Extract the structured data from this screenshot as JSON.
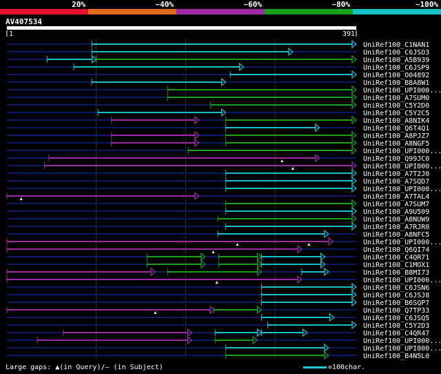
{
  "query": {
    "name": "AV407534",
    "start_label": "1",
    "end_label": "391",
    "length": 391
  },
  "identity_legend": [
    {
      "label": "20%",
      "color": "#e8102c"
    },
    {
      "label": "~40%",
      "color": "#e06a18"
    },
    {
      "label": "~60%",
      "color": "#9c2aa0"
    },
    {
      "label": "~80%",
      "color": "#18a018"
    },
    {
      "label": "~100%",
      "color": "#18c0c8"
    }
  ],
  "footer": {
    "gaps_text": "Large gaps: ▲(in Query)/– (in Subject)",
    "scale_text": "=100char."
  },
  "hits": [
    {
      "name": "UniRef100_C1NAN1",
      "segs": [
        [
          95,
          391,
          "c"
        ]
      ]
    },
    {
      "name": "UniRef100_C6JSO3",
      "segs": [
        [
          95,
          320,
          "c"
        ]
      ]
    },
    {
      "name": "UniRef100_A5B939",
      "segs": [
        [
          45,
          100,
          "c"
        ],
        [
          100,
          391,
          "g"
        ]
      ]
    },
    {
      "name": "UniRef100_C6JSP9",
      "segs": [
        [
          75,
          265,
          "c"
        ]
      ]
    },
    {
      "name": "UniRef100_O04892",
      "segs": [
        [
          250,
          391,
          "c"
        ]
      ]
    },
    {
      "name": "UniRef100_B8A8W1",
      "segs": [
        [
          95,
          245,
          "c"
        ]
      ]
    },
    {
      "name": "UniRef100_UPI000...",
      "segs": [
        [
          180,
          391,
          "g"
        ]
      ]
    },
    {
      "name": "UniRef100_A7SUM0",
      "segs": [
        [
          180,
          391,
          "g"
        ]
      ]
    },
    {
      "name": "UniRef100_C5Y2D0",
      "segs": [
        [
          228,
          391,
          "g"
        ]
      ]
    },
    {
      "name": "UniRef100_C5Y2C5",
      "segs": [
        [
          102,
          245,
          "c"
        ]
      ]
    },
    {
      "name": "UniRef100_A8NIK4",
      "segs": [
        [
          117,
          215,
          "m"
        ],
        [
          245,
          391,
          "g"
        ]
      ]
    },
    {
      "name": "UniRef100_Q6T4Q1",
      "segs": [
        [
          245,
          350,
          "c"
        ]
      ]
    },
    {
      "name": "UniRef100_A8PJZ7",
      "segs": [
        [
          117,
          215,
          "m"
        ],
        [
          245,
          391,
          "g"
        ]
      ]
    },
    {
      "name": "UniRef100_A8NGF5",
      "segs": [
        [
          117,
          215,
          "m"
        ],
        [
          245,
          391,
          "g"
        ]
      ]
    },
    {
      "name": "UniRef100_UPI000...",
      "segs": [
        [
          203,
          391,
          "g"
        ]
      ]
    },
    {
      "name": "UniRef100_Q99JC0",
      "segs": [
        [
          47,
          350,
          "m"
        ]
      ],
      "gaps": [
        308
      ]
    },
    {
      "name": "UniRef100_UPI000...",
      "segs": [
        [
          42,
          391,
          "m"
        ]
      ],
      "gaps": [
        320
      ]
    },
    {
      "name": "UniRef100_A7T2J0",
      "segs": [
        [
          245,
          391,
          "c"
        ]
      ]
    },
    {
      "name": "UniRef100_A7SQD7",
      "segs": [
        [
          245,
          391,
          "c"
        ]
      ]
    },
    {
      "name": "UniRef100_UPI000...",
      "segs": [
        [
          245,
          391,
          "c"
        ]
      ]
    },
    {
      "name": "UniRef100_A7TAL4",
      "segs": [
        [
          0,
          215,
          "m"
        ]
      ],
      "gaps": [
        16
      ]
    },
    {
      "name": "UniRef100_A7SUM7",
      "segs": [
        [
          245,
          391,
          "g"
        ]
      ]
    },
    {
      "name": "UniRef100_A9U509",
      "segs": [
        [
          245,
          391,
          "c"
        ]
      ]
    },
    {
      "name": "UniRef100_A8NUW9",
      "segs": [
        [
          236,
          391,
          "g"
        ]
      ]
    },
    {
      "name": "UniRef100_A7RJR0",
      "segs": [
        [
          245,
          391,
          "c"
        ]
      ]
    },
    {
      "name": "UniRef100_A8NFC5",
      "segs": [
        [
          236,
          360,
          "c"
        ]
      ]
    },
    {
      "name": "UniRef100_UPI000...",
      "segs": [
        [
          0,
          365,
          "m"
        ]
      ],
      "gaps": [
        258,
        338
      ]
    },
    {
      "name": "UniRef100_Q6QI74",
      "segs": [
        [
          0,
          330,
          "m"
        ]
      ],
      "gaps": [
        231
      ]
    },
    {
      "name": "UniRef100_C4QR71",
      "segs": [
        [
          157,
          222,
          "g"
        ],
        [
          237,
          285,
          "g"
        ],
        [
          285,
          356,
          "c"
        ]
      ]
    },
    {
      "name": "UniRef100_C1MOX1",
      "segs": [
        [
          157,
          222,
          "g"
        ],
        [
          237,
          285,
          "g"
        ],
        [
          285,
          356,
          "c"
        ]
      ]
    },
    {
      "name": "UniRef100_B8MI73",
      "segs": [
        [
          0,
          166,
          "m"
        ],
        [
          180,
          285,
          "g"
        ],
        [
          330,
          360,
          "c"
        ]
      ]
    },
    {
      "name": "UniRef100_UPI000...",
      "segs": [
        [
          0,
          330,
          "m"
        ]
      ],
      "gaps": [
        235
      ]
    },
    {
      "name": "UniRef100_C6JSN6",
      "segs": [
        [
          285,
          391,
          "c"
        ]
      ]
    },
    {
      "name": "UniRef100_C6JSJ8",
      "segs": [
        [
          285,
          391,
          "c"
        ]
      ]
    },
    {
      "name": "UniRef100_B6SQP7",
      "segs": [
        [
          285,
          391,
          "c"
        ]
      ]
    },
    {
      "name": "UniRef100_Q7TP33",
      "segs": [
        [
          0,
          232,
          "m"
        ],
        [
          232,
          285,
          "g"
        ]
      ],
      "gaps": [
        166
      ]
    },
    {
      "name": "UniRef100_C6JSQ5",
      "segs": [
        [
          285,
          366,
          "c"
        ]
      ]
    },
    {
      "name": "UniRef100_C5Y2D3",
      "segs": [
        [
          292,
          391,
          "c"
        ]
      ]
    },
    {
      "name": "UniRef100_C4QR47",
      "segs": [
        [
          63,
          207,
          "m"
        ],
        [
          233,
          285,
          "c"
        ],
        [
          285,
          336,
          "c"
        ]
      ]
    },
    {
      "name": "UniRef100_UPI000...",
      "segs": [
        [
          34,
          207,
          "m"
        ],
        [
          233,
          280,
          "g"
        ]
      ]
    },
    {
      "name": "UniRef100_UPI000...",
      "segs": [
        [
          245,
          360,
          "c"
        ]
      ]
    },
    {
      "name": "UniRef100_B4N5L0",
      "segs": [
        [
          245,
          360,
          "g"
        ]
      ]
    }
  ]
}
